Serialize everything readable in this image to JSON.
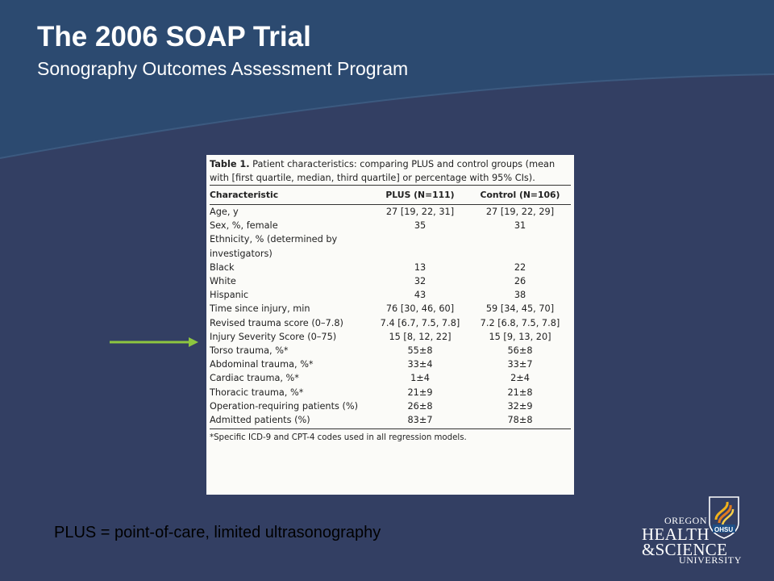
{
  "slide": {
    "title": "The 2006 SOAP Trial",
    "subtitle": "Sonography Outcomes Assessment Program",
    "footer_note": "PLUS = point-of-care, limited ultrasonography",
    "colors": {
      "background": "#333f63",
      "wave": "#2c4a70",
      "arrow": "#8dc63f"
    },
    "arrow_icon": "arrow-right-icon"
  },
  "table": {
    "caption_label": "Table 1.",
    "caption_text": " Patient characteristics: comparing PLUS and control groups (mean with [first quartile, median, third quartile] or percentage with 95% CIs).",
    "headers": {
      "characteristic": "Characteristic",
      "plus": "PLUS (N=111)",
      "control": "Control (N=106)"
    },
    "rows": [
      {
        "label": "Age, y",
        "plus": "27 [19, 22, 31]",
        "control": "27 [19, 22, 29]"
      },
      {
        "label": "Sex, %, female",
        "plus": "35",
        "control": "31"
      },
      {
        "label": "Ethnicity, % (determined by",
        "plus": "",
        "control": ""
      },
      {
        "label": "investigators)",
        "plus": "",
        "control": ""
      },
      {
        "label": "Black",
        "plus": "13",
        "control": "22"
      },
      {
        "label": "White",
        "plus": "32",
        "control": "26"
      },
      {
        "label": "Hispanic",
        "plus": "43",
        "control": "38"
      },
      {
        "label": "Time since injury, min",
        "plus": "76 [30, 46, 60]",
        "control": "59 [34, 45, 70]"
      },
      {
        "label": "Revised trauma score (0–7.8)",
        "plus": "7.4 [6.7, 7.5, 7.8]",
        "control": "7.2 [6.8, 7.5, 7.8]"
      },
      {
        "label": "Injury Severity Score (0–75)",
        "plus": "15 [8, 12, 22]",
        "control": "15 [9, 13, 20]"
      },
      {
        "label": "Torso trauma, %*",
        "plus": "55±8",
        "control": "56±8"
      },
      {
        "label": "Abdominal trauma, %*",
        "plus": "33±4",
        "control": "33±7"
      },
      {
        "label": "Cardiac trauma, %*",
        "plus": "1±4",
        "control": "2±4"
      },
      {
        "label": "Thoracic trauma, %*",
        "plus": "21±9",
        "control": "21±8"
      },
      {
        "label": "Operation-requiring patients (%)",
        "plus": "26±8",
        "control": "32±9"
      },
      {
        "label": "Admitted patients (%)",
        "plus": "83±7",
        "control": "78±8"
      }
    ],
    "footnote": "*Specific ICD-9 and CPT-4 codes used in all regression models."
  },
  "logo": {
    "line1": "OREGON",
    "line2": "HEALTH",
    "line3": "&SCIENCE",
    "line4": "UNIVERSITY",
    "shield_text": "OHSU",
    "icon": "ohsu-shield-icon"
  }
}
